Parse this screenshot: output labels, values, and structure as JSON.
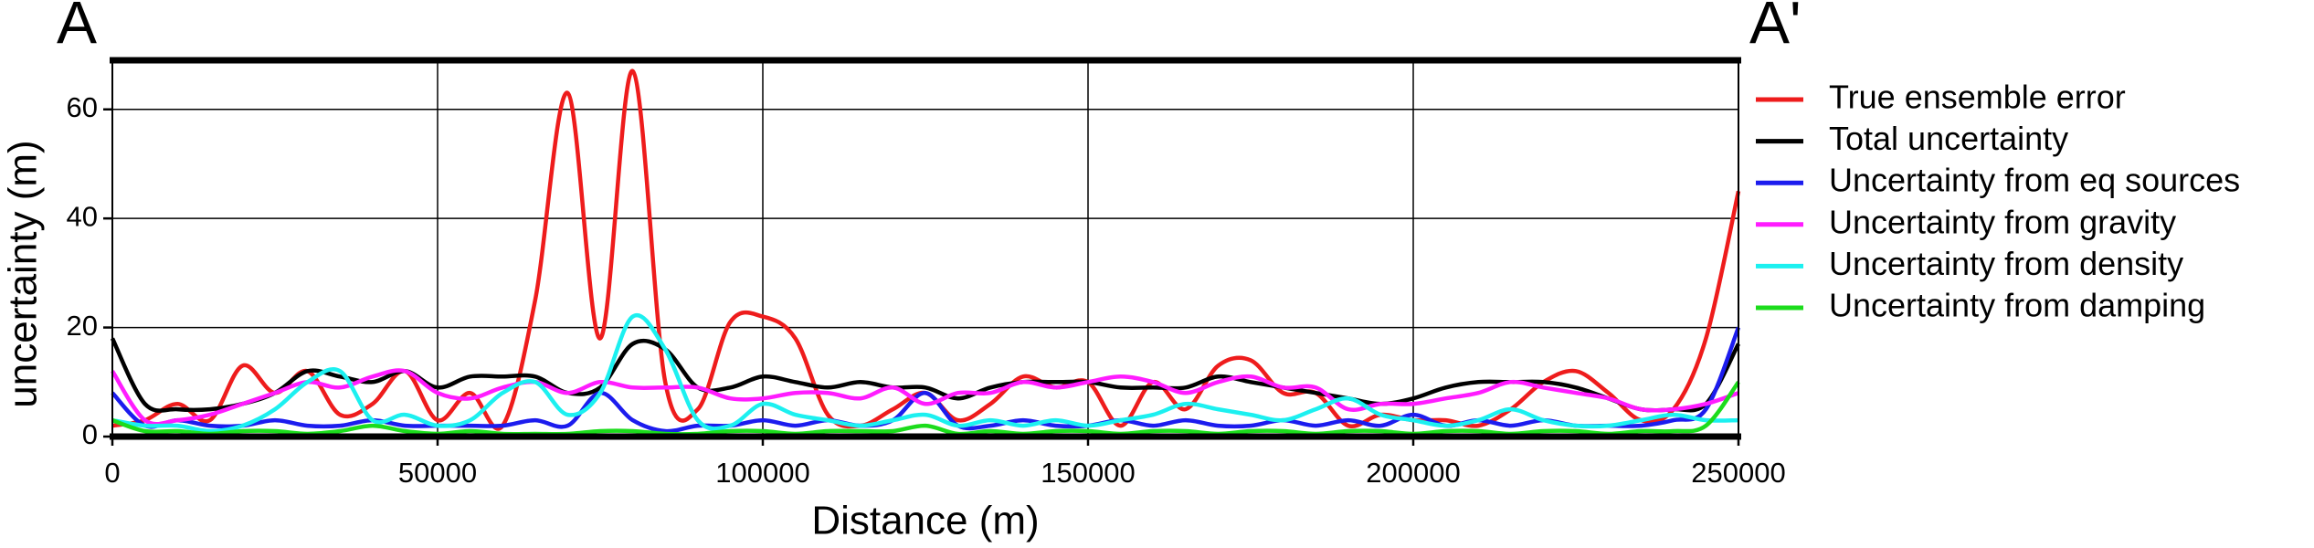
{
  "chart_data": {
    "type": "line",
    "labels": [
      "A",
      "A'"
    ],
    "xlabel": "Distance (m)",
    "ylabel": "uncertainty (m)",
    "xlim": [
      0,
      250000
    ],
    "ylim": [
      0,
      69
    ],
    "xticks": [
      0,
      50000,
      100000,
      150000,
      200000,
      250000
    ],
    "yticks": [
      0,
      20,
      40,
      60
    ],
    "grid": true,
    "legend": "right",
    "x": [
      0,
      5000,
      10000,
      15000,
      20000,
      25000,
      30000,
      35000,
      40000,
      45000,
      50000,
      55000,
      60000,
      65000,
      70000,
      75000,
      80000,
      85000,
      90000,
      95000,
      100000,
      105000,
      110000,
      115000,
      120000,
      125000,
      130000,
      135000,
      140000,
      145000,
      150000,
      155000,
      160000,
      165000,
      170000,
      175000,
      180000,
      185000,
      190000,
      195000,
      200000,
      205000,
      210000,
      215000,
      220000,
      225000,
      230000,
      235000,
      240000,
      245000,
      250000
    ],
    "series": [
      {
        "name": "True ensemble error",
        "color": "#ee1c1c",
        "values": [
          2,
          3,
          6,
          3,
          13,
          8,
          12,
          4,
          6,
          12,
          3,
          8,
          2,
          25,
          63,
          18,
          67,
          10,
          5,
          21,
          22,
          18,
          4,
          2,
          5,
          8,
          3,
          6,
          11,
          9,
          10,
          2,
          10,
          5,
          13,
          14,
          8,
          8,
          2,
          4,
          3,
          3,
          2,
          5,
          10,
          12,
          8,
          3,
          5,
          18,
          45
        ]
      },
      {
        "name": "Total uncertainty",
        "color": "#000000",
        "values": [
          18,
          6,
          5,
          5,
          6,
          8,
          12,
          11,
          10,
          12,
          9,
          11,
          11,
          11,
          8,
          9,
          17,
          16,
          9,
          9,
          11,
          10,
          9,
          10,
          9,
          9,
          7,
          9,
          10,
          10,
          10,
          9,
          9,
          9,
          11,
          10,
          9,
          8,
          7,
          6,
          7,
          9,
          10,
          10,
          10,
          9,
          7,
          5,
          5,
          6,
          17
        ]
      },
      {
        "name": "Uncertainty from eq sources",
        "color": "#1c1cee",
        "values": [
          8,
          2,
          3,
          2,
          2,
          3,
          2,
          2,
          3,
          2,
          2,
          2,
          2,
          3,
          2,
          8,
          3,
          1,
          2,
          2,
          3,
          2,
          3,
          2,
          3,
          8,
          2,
          2,
          3,
          2,
          2,
          3,
          2,
          3,
          2,
          2,
          3,
          2,
          3,
          2,
          4,
          2,
          3,
          2,
          3,
          2,
          2,
          2,
          3,
          5,
          20
        ]
      },
      {
        "name": "Uncertainty from gravity",
        "color": "#ff1cff",
        "values": [
          12,
          3,
          3,
          4,
          6,
          8,
          10,
          9,
          11,
          12,
          8,
          7,
          9,
          10,
          8,
          10,
          9,
          9,
          9,
          7,
          7,
          8,
          8,
          7,
          9,
          6,
          8,
          8,
          10,
          9,
          10,
          11,
          10,
          8,
          10,
          11,
          9,
          9,
          5,
          6,
          6,
          7,
          8,
          10,
          9,
          8,
          7,
          5,
          5,
          6,
          8
        ]
      },
      {
        "name": "Uncertainty from density",
        "color": "#1cf0f0",
        "values": [
          3,
          2,
          2,
          1,
          2,
          5,
          10,
          12,
          3,
          4,
          2,
          3,
          8,
          10,
          4,
          8,
          22,
          16,
          3,
          2,
          6,
          4,
          3,
          2,
          3,
          4,
          2,
          3,
          2,
          3,
          2,
          3,
          4,
          6,
          5,
          4,
          3,
          5,
          7,
          4,
          3,
          2,
          3,
          5,
          3,
          2,
          2,
          3,
          4,
          3,
          3
        ]
      },
      {
        "name": "Uncertainty from damping",
        "color": "#1cdc1c",
        "values": [
          3,
          1,
          1,
          0.5,
          1,
          1,
          0.5,
          1,
          2,
          1,
          0.5,
          1,
          0.5,
          0.5,
          0.5,
          1,
          1,
          0.5,
          0.5,
          1,
          1,
          0.5,
          1,
          1,
          1,
          2,
          0.5,
          1,
          0.5,
          1,
          1,
          0.5,
          1,
          1,
          0.5,
          1,
          1,
          0.5,
          1,
          1,
          0.5,
          1,
          1,
          0.5,
          1,
          1,
          0.5,
          1,
          1,
          2,
          10
        ]
      }
    ]
  }
}
